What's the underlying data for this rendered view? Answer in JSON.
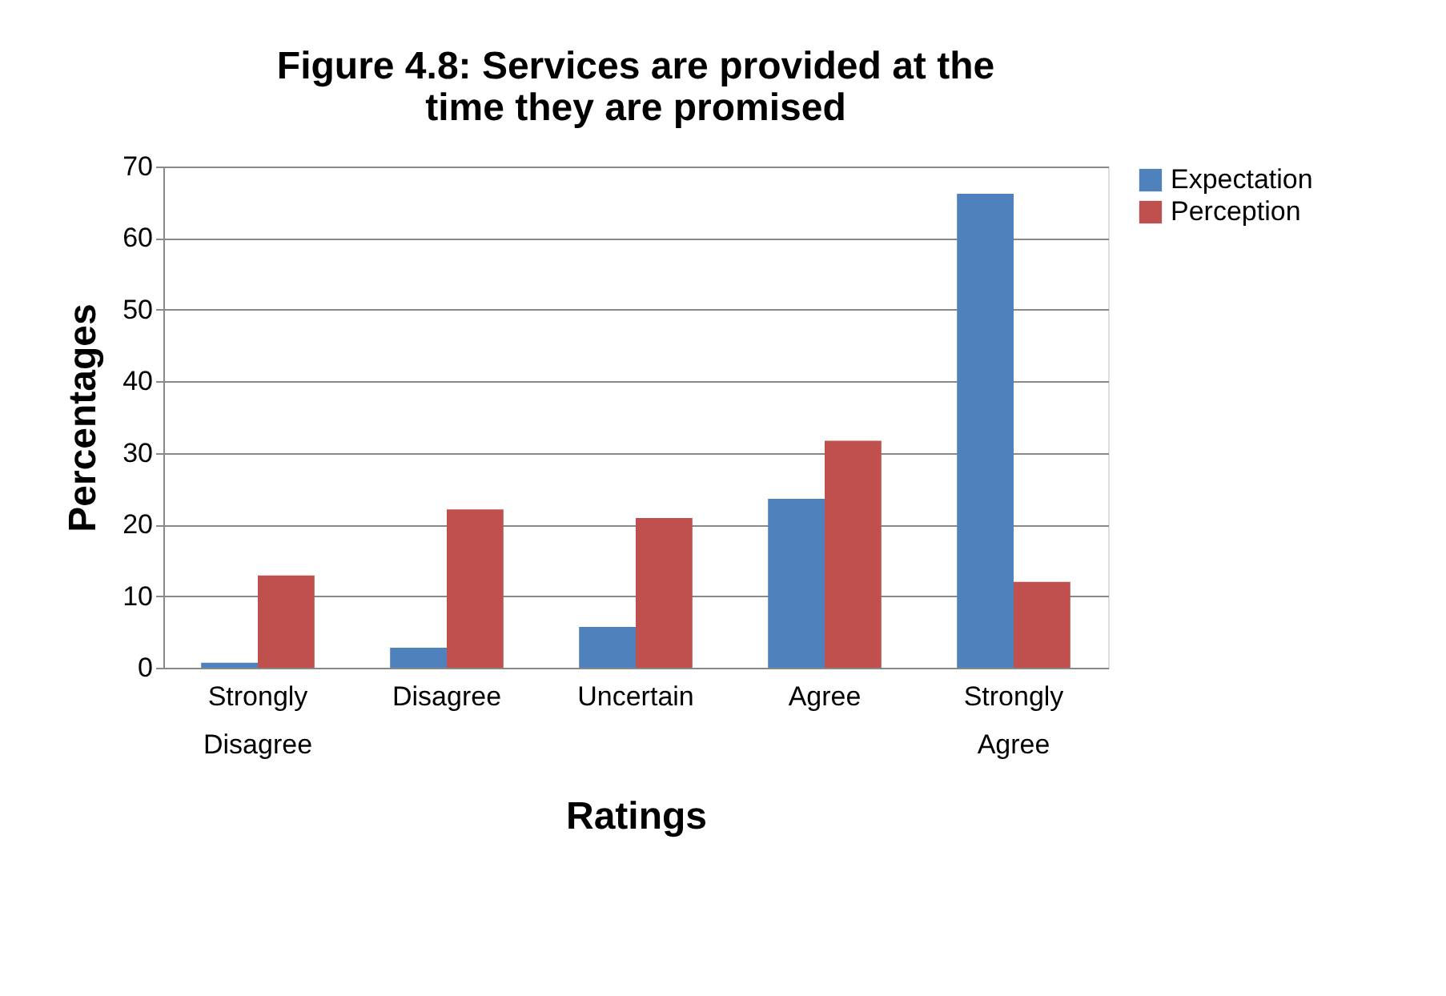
{
  "chart_data": {
    "type": "bar",
    "title": "Figure 4.8: Services are provided at the time they are promised",
    "xlabel": "Ratings",
    "ylabel": "Percentages",
    "categories": [
      "Strongly Disagree",
      "Disagree",
      "Uncertain",
      "Agree",
      "Strongly Agree"
    ],
    "series": [
      {
        "name": "Expectation",
        "color": "#4f81bd",
        "values": [
          0.7,
          2.8,
          5.7,
          23.6,
          66.2
        ]
      },
      {
        "name": "Perception",
        "color": "#c0504d",
        "values": [
          12.9,
          22.1,
          20.9,
          31.7,
          12.0
        ]
      }
    ],
    "ylim": [
      0,
      70
    ],
    "yticks": [
      0,
      10,
      20,
      30,
      40,
      50,
      60,
      70
    ],
    "grid": "y",
    "legend": "right"
  }
}
